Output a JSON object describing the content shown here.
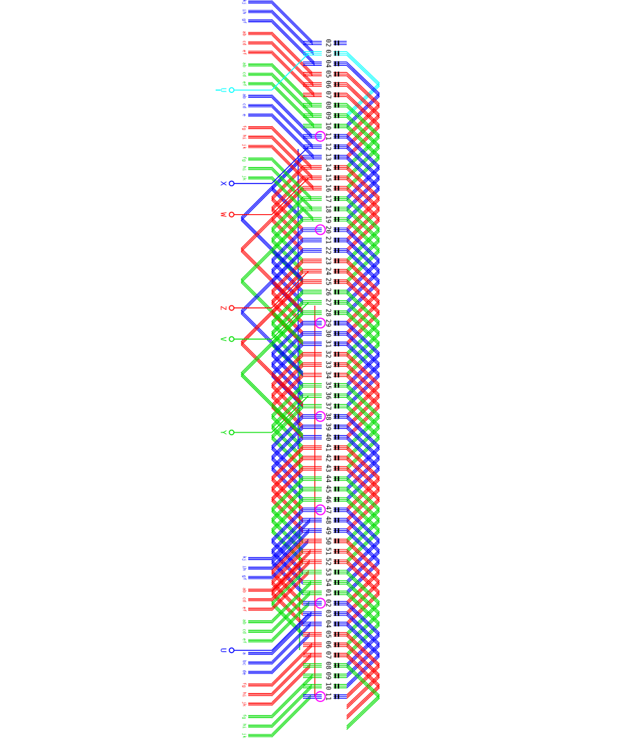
{
  "diagram": {
    "type": "motor-winding-layout",
    "slot_labels": [
      "02",
      "03",
      "04",
      "05",
      "06",
      "07",
      "08",
      "09",
      "10",
      "11",
      "12",
      "13",
      "14",
      "15",
      "16",
      "17",
      "18",
      "19",
      "20",
      "21",
      "22",
      "23",
      "24",
      "25",
      "26",
      "27",
      "28",
      "29",
      "30",
      "31",
      "32",
      "33",
      "34",
      "35",
      "36",
      "37",
      "38",
      "39",
      "40",
      "41",
      "42",
      "43",
      "44",
      "45",
      "46",
      "47",
      "48",
      "49",
      "50",
      "51",
      "52",
      "53",
      "54",
      "01",
      "02",
      "03",
      "04",
      "05",
      "06",
      "07",
      "08",
      "09",
      "10",
      "11"
    ],
    "phase_cycle": [
      "blue",
      "blue",
      "blue",
      "red",
      "red",
      "red",
      "green",
      "green",
      "green"
    ],
    "colors": {
      "blue": "#0000ff",
      "red": "#ff0000",
      "green": "#00dd00",
      "cyan": "#00ffff",
      "magenta": "#ff00ff",
      "black": "#000000",
      "white": "#ffffff"
    },
    "circled_slot_indices": [
      9,
      18,
      27,
      36,
      45,
      54,
      63
    ],
    "highlighted_slot_index": 1,
    "terminals": [
      {
        "label": "U",
        "color": "cyan",
        "row": 1,
        "underline": true
      },
      {
        "label": "X",
        "color": "blue",
        "row": 10,
        "underline": false
      },
      {
        "label": "W",
        "color": "red",
        "row": 13,
        "underline": false
      },
      {
        "label": "Z",
        "color": "red",
        "row": 22,
        "underline": false
      },
      {
        "label": "V",
        "color": "green",
        "row": 25,
        "underline": false
      },
      {
        "label": "Y",
        "color": "green",
        "row": 34,
        "underline": false
      },
      {
        "label": "U",
        "color": "blue",
        "row": 55,
        "underline": false
      }
    ],
    "top_leads": [
      {
        "label": "kj",
        "color": "blue"
      },
      {
        "label": "ih",
        "color": "blue"
      },
      {
        "label": "gf",
        "color": "blue"
      },
      {
        "label": "ab",
        "color": "red"
      },
      {
        "label": "cd",
        "color": "red"
      },
      {
        "label": "ef",
        "color": "red"
      },
      {
        "label": "ab",
        "color": "green"
      },
      {
        "label": "cd",
        "color": "green"
      },
      {
        "label": "ef",
        "color": "green"
      },
      {
        "label": "ab",
        "color": "blue"
      },
      {
        "label": "cd",
        "color": "blue"
      },
      {
        "label": "e",
        "color": "blue"
      },
      {
        "label": "fg",
        "color": "red"
      },
      {
        "label": "hi",
        "color": "red"
      },
      {
        "label": "jk",
        "color": "red"
      },
      {
        "label": "fg",
        "color": "green"
      },
      {
        "label": "hi",
        "color": "green"
      },
      {
        "label": "jk",
        "color": "green"
      }
    ],
    "bottom_leads": [
      {
        "label": "kj",
        "color": "blue"
      },
      {
        "label": "ih",
        "color": "blue"
      },
      {
        "label": "gf",
        "color": "blue"
      },
      {
        "label": "ab",
        "color": "red"
      },
      {
        "label": "cd",
        "color": "red"
      },
      {
        "label": "ef",
        "color": "red"
      },
      {
        "label": "ab",
        "color": "green"
      },
      {
        "label": "cd",
        "color": "green"
      },
      {
        "label": "ef",
        "color": "green"
      },
      {
        "label": "a",
        "color": "blue"
      },
      {
        "label": "bc",
        "color": "blue"
      },
      {
        "label": "de",
        "color": "blue"
      },
      {
        "label": "fg",
        "color": "red"
      },
      {
        "label": "hi",
        "color": "red"
      },
      {
        "label": "jk",
        "color": "red"
      },
      {
        "label": "fg",
        "color": "green"
      },
      {
        "label": "hi",
        "color": "green"
      },
      {
        "label": "jk",
        "color": "green"
      }
    ]
  }
}
